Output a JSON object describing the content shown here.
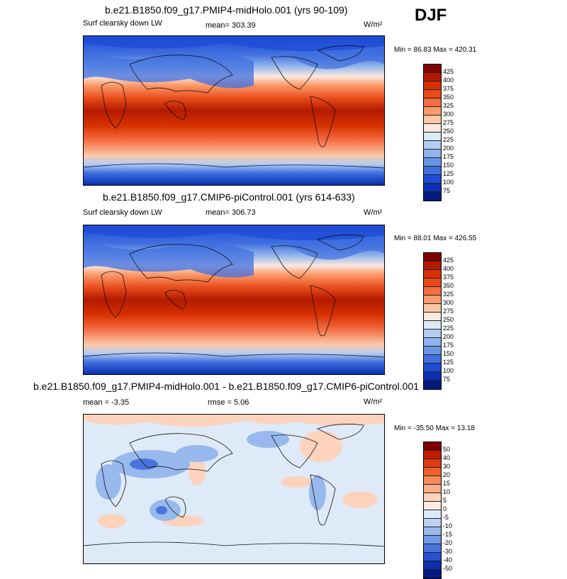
{
  "season": "DJF",
  "panels": [
    {
      "title": "b.e21.B1850.f09_g17.PMIP4-midHolo.001 (yrs 90-109)",
      "variable": "Surf clearsky down LW",
      "mean": "mean= 303.39",
      "units": "W/m²",
      "minmax": "Min =  86.83 Max = 420.31",
      "colorbar_labels": [
        "425",
        "400",
        "375",
        "350",
        "325",
        "300",
        "275",
        "250",
        "225",
        "200",
        "175",
        "150",
        "125",
        "100",
        "75"
      ],
      "colorbar_colors": [
        "#7f0000",
        "#b31a00",
        "#d73000",
        "#e84a1a",
        "#f46d43",
        "#fb9a6a",
        "#fdc7a6",
        "#fbe9df",
        "#dce9f7",
        "#b4cdf2",
        "#8fb3ec",
        "#6a94e6",
        "#3f6fe0",
        "#1f4cd6",
        "#0a2fb0",
        "#001b80"
      ]
    },
    {
      "title": "b.e21.B1850.f09_g17.CMIP6-piControl.001 (yrs 614-633)",
      "variable": "Surf clearsky down LW",
      "mean": "mean= 306.73",
      "units": "W/m²",
      "minmax": "Min =  88.01 Max = 426.55",
      "colorbar_labels": [
        "425",
        "400",
        "375",
        "350",
        "325",
        "300",
        "275",
        "250",
        "225",
        "200",
        "175",
        "150",
        "125",
        "100",
        "75"
      ],
      "colorbar_colors": [
        "#7f0000",
        "#b31a00",
        "#d73000",
        "#e84a1a",
        "#f46d43",
        "#fb9a6a",
        "#fdc7a6",
        "#fbe9df",
        "#dce9f7",
        "#b4cdf2",
        "#8fb3ec",
        "#6a94e6",
        "#3f6fe0",
        "#1f4cd6",
        "#0a2fb0",
        "#001b80"
      ]
    },
    {
      "title": "b.e21.B1850.f09_g17.PMIP4-midHolo.001 - b.e21.B1850.f09_g17.CMIP6-piControl.001",
      "variable": "",
      "mean": "mean =  -3.35",
      "rmse": "rmse =   5.06",
      "units": "W/m²",
      "minmax": "Min = -35.50 Max =  13.18",
      "colorbar_labels": [
        "50",
        "40",
        "30",
        "20",
        "15",
        "10",
        "5",
        "0",
        "-5",
        "-10",
        "-15",
        "-20",
        "-30",
        "-40",
        "-50"
      ],
      "colorbar_colors": [
        "#7f0000",
        "#c21a00",
        "#e03a10",
        "#f0602a",
        "#f7895a",
        "#fbae88",
        "#fdd3bd",
        "#fdebe0",
        "#dfeaf8",
        "#bcd2f3",
        "#97b9ee",
        "#7098e6",
        "#4a73de",
        "#2a4fd0",
        "#0d2eb0",
        "#001a80"
      ]
    }
  ]
}
